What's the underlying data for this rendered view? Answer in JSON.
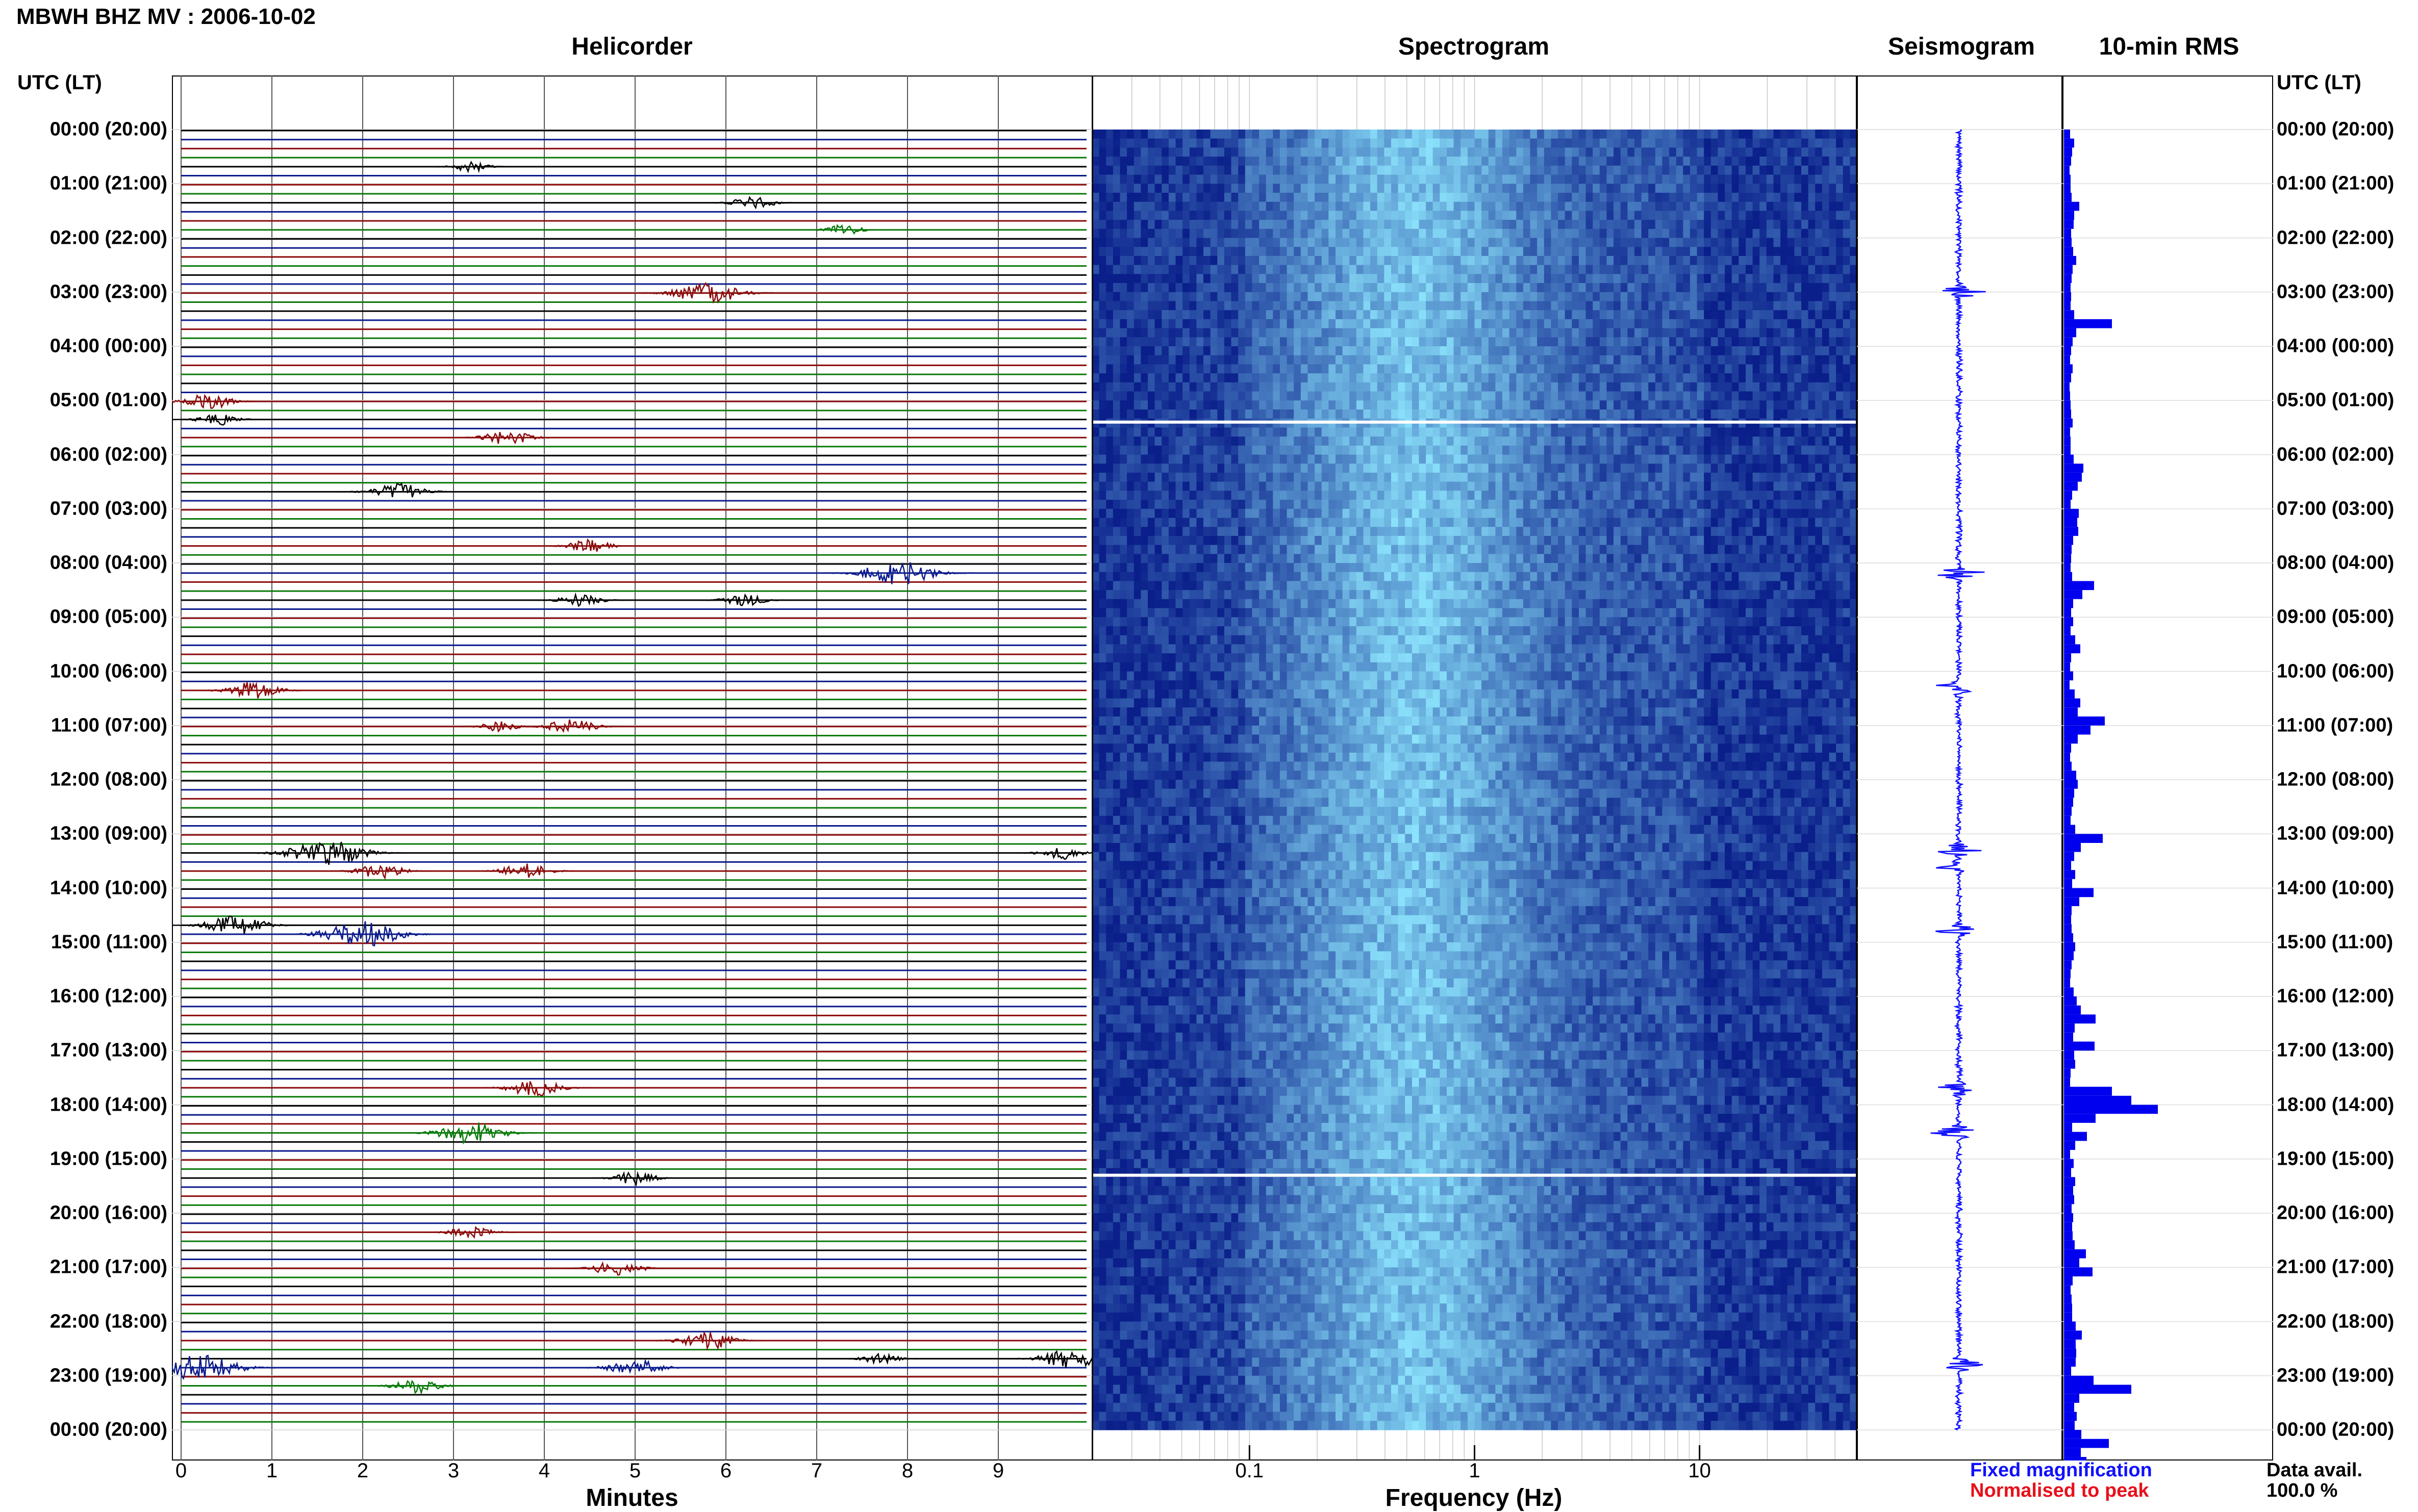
{
  "header": {
    "title": "MBWH BHZ MV : 2006-10-02",
    "panels": [
      "Helicorder",
      "Spectrogram",
      "Seismogram",
      "10-min RMS"
    ],
    "time_axis_label": "UTC (LT)"
  },
  "footer": {
    "helicorder_xlabel": "Minutes",
    "spectrogram_xlabel": "Frequency (Hz)",
    "legend_fixed": "Fixed magnification",
    "legend_normalised": "Normalised to peak",
    "data_avail_label": "Data avail.",
    "data_avail_value": "100.0 %"
  },
  "colors": {
    "trace_cycle": [
      "#000000",
      "#0a1a8c",
      "#8c0a0a",
      "#0a7a0a"
    ],
    "spectrogram_low": "#0a1f8a",
    "spectrogram_high": "#8fe8ff",
    "seismogram": "#1010ff",
    "rms_bar": "#0000ee",
    "legend_fixed": "#1010ff",
    "legend_normalised": "#e8101a"
  },
  "chart_data": [
    {
      "type": "line",
      "panel": "Helicorder",
      "xlabel": "Minutes",
      "x_ticks": [
        "0",
        "1",
        "2",
        "3",
        "4",
        "5",
        "6",
        "7",
        "8",
        "9"
      ],
      "xlim": [
        0,
        10
      ],
      "y_ticks": [
        "00:00 (20:00)",
        "01:00 (21:00)",
        "02:00 (22:00)",
        "03:00 (23:00)",
        "04:00 (00:00)",
        "05:00 (01:00)",
        "06:00 (02:00)",
        "07:00 (03:00)",
        "08:00 (04:00)",
        "09:00 (05:00)",
        "10:00 (06:00)",
        "11:00 (07:00)",
        "12:00 (08:00)",
        "13:00 (09:00)",
        "14:00 (10:00)",
        "15:00 (11:00)",
        "16:00 (12:00)",
        "17:00 (13:00)",
        "18:00 (14:00)",
        "19:00 (15:00)",
        "20:00 (16:00)",
        "21:00 (17:00)",
        "22:00 (18:00)",
        "23:00 (19:00)",
        "00:00 (20:00)"
      ],
      "rows": 144,
      "events": [
        {
          "hour": 0.6,
          "minute": 3.2,
          "amp": 0.3
        },
        {
          "hour": 1.3,
          "minute": 6.3,
          "amp": 0.4
        },
        {
          "hour": 1.8,
          "minute": 7.3,
          "amp": 0.3
        },
        {
          "hour": 3.0,
          "minute": 5.8,
          "amp": 0.8
        },
        {
          "hour": 5.0,
          "minute": 0.3,
          "amp": 0.5
        },
        {
          "hour": 5.3,
          "minute": 0.4,
          "amp": 0.4
        },
        {
          "hour": 5.6,
          "minute": 3.6,
          "amp": 0.5
        },
        {
          "hour": 6.7,
          "minute": 2.4,
          "amp": 0.6
        },
        {
          "hour": 7.7,
          "minute": 4.5,
          "amp": 0.4
        },
        {
          "hour": 8.2,
          "minute": 7.9,
          "amp": 0.9
        },
        {
          "hour": 8.7,
          "minute": 4.4,
          "amp": 0.4
        },
        {
          "hour": 8.7,
          "minute": 6.2,
          "amp": 0.4
        },
        {
          "hour": 10.3,
          "minute": 0.8,
          "amp": 0.6
        },
        {
          "hour": 11.0,
          "minute": 4.3,
          "amp": 0.5
        },
        {
          "hour": 11.0,
          "minute": 3.5,
          "amp": 0.3
        },
        {
          "hour": 13.3,
          "minute": 1.6,
          "amp": 1.0
        },
        {
          "hour": 13.3,
          "minute": 9.7,
          "amp": 0.4
        },
        {
          "hour": 13.6,
          "minute": 2.2,
          "amp": 0.5
        },
        {
          "hour": 13.6,
          "minute": 3.8,
          "amp": 0.5
        },
        {
          "hour": 14.7,
          "minute": 0.6,
          "amp": 0.7
        },
        {
          "hour": 14.8,
          "minute": 2.0,
          "amp": 1.0
        },
        {
          "hour": 17.7,
          "minute": 3.9,
          "amp": 0.6
        },
        {
          "hour": 18.5,
          "minute": 3.2,
          "amp": 0.8
        },
        {
          "hour": 19.3,
          "minute": 5.0,
          "amp": 0.4
        },
        {
          "hour": 20.3,
          "minute": 3.2,
          "amp": 0.4
        },
        {
          "hour": 21.0,
          "minute": 4.8,
          "amp": 0.5
        },
        {
          "hour": 22.3,
          "minute": 5.8,
          "amp": 0.6
        },
        {
          "hour": 22.6,
          "minute": 9.8,
          "amp": 0.7
        },
        {
          "hour": 22.8,
          "minute": 0.2,
          "amp": 1.0
        },
        {
          "hour": 22.8,
          "minute": 5.0,
          "amp": 0.6
        },
        {
          "hour": 23.2,
          "minute": 2.6,
          "amp": 0.5
        },
        {
          "hour": 22.7,
          "minute": 7.7,
          "amp": 0.3
        }
      ]
    },
    {
      "type": "heatmap",
      "panel": "Spectrogram",
      "xlabel": "Frequency (Hz)",
      "x_scale": "log",
      "xlim": [
        0.02,
        50
      ],
      "x_ticks": [
        "0.1",
        "1",
        "10"
      ],
      "gaps_utc_hours": [
        5.4,
        19.3
      ]
    },
    {
      "type": "line",
      "panel": "Seismogram",
      "events_utc_hours": [
        3.0,
        8.2,
        10.3,
        13.3,
        13.6,
        14.8,
        17.7,
        18.5,
        22.8
      ]
    },
    {
      "type": "bar",
      "panel": "10-min RMS",
      "orientation": "horizontal",
      "bins_per_hour": 6,
      "values": [
        0.12,
        0.2,
        0.16,
        0.14,
        0.11,
        0.13,
        0.13,
        0.15,
        0.3,
        0.2,
        0.19,
        0.14,
        0.15,
        0.18,
        0.24,
        0.17,
        0.15,
        0.13,
        0.14,
        0.13,
        0.2,
        0.94,
        0.24,
        0.17,
        0.14,
        0.12,
        0.17,
        0.14,
        0.11,
        0.12,
        0.13,
        0.14,
        0.17,
        0.12,
        0.13,
        0.13,
        0.19,
        0.38,
        0.35,
        0.27,
        0.16,
        0.13,
        0.29,
        0.26,
        0.28,
        0.18,
        0.15,
        0.14,
        0.13,
        0.16,
        0.59,
        0.36,
        0.18,
        0.14,
        0.18,
        0.13,
        0.22,
        0.32,
        0.14,
        0.12,
        0.18,
        0.11,
        0.21,
        0.32,
        0.27,
        0.8,
        0.52,
        0.27,
        0.14,
        0.12,
        0.15,
        0.24,
        0.27,
        0.2,
        0.18,
        0.15,
        0.13,
        0.22,
        0.76,
        0.33,
        0.2,
        0.14,
        0.22,
        0.16,
        0.58,
        0.3,
        0.15,
        0.14,
        0.15,
        0.18,
        0.22,
        0.19,
        0.15,
        0.13,
        0.12,
        0.19,
        0.25,
        0.33,
        0.62,
        0.21,
        0.18,
        0.6,
        0.2,
        0.22,
        0.13,
        0.12,
        0.94,
        1.32,
        1.84,
        0.62,
        0.16,
        0.45,
        0.22,
        0.12,
        0.19,
        0.14,
        0.22,
        0.18,
        0.2,
        0.15,
        0.18,
        0.16,
        0.17,
        0.21,
        0.43,
        0.3,
        0.56,
        0.17,
        0.13,
        0.15,
        0.16,
        0.16,
        0.23,
        0.35,
        0.23,
        0.24,
        0.23,
        0.14,
        0.58,
        1.32,
        0.3,
        0.2,
        0.25,
        0.21,
        0.34,
        0.88,
        0.33,
        0.44,
        0.64,
        0.35
      ]
    }
  ]
}
